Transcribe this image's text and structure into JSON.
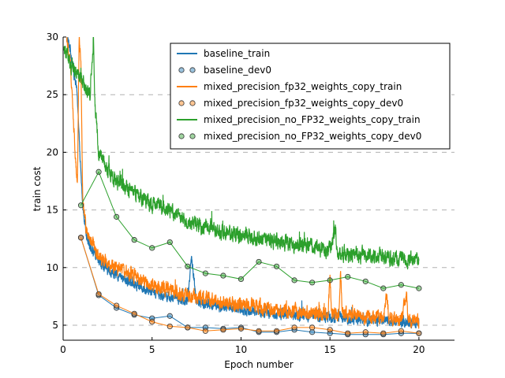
{
  "chart_data": {
    "type": "line",
    "xlabel": "Epoch number",
    "ylabel": "train cost",
    "xlim": [
      0,
      22
    ],
    "ylim": [
      3.7,
      30
    ],
    "xticks": [
      0,
      5,
      10,
      15,
      20
    ],
    "yticks": [
      5,
      10,
      15,
      20,
      25,
      30
    ],
    "grid": "horizontal dashed",
    "legend_position": "top-right",
    "colors": {
      "baseline": "#1f77b4",
      "fp32_copy": "#ff7f0e",
      "no_fp32_copy": "#2ca02c"
    },
    "train_series": [
      {
        "name": "baseline_train",
        "color_key": "baseline",
        "x": [
          0.2,
          0.4,
          0.6,
          0.8,
          0.9,
          1.0,
          1.1,
          1.3,
          1.5,
          1.8,
          2.0,
          2.5,
          3.0,
          3.5,
          4.0,
          4.5,
          5.0,
          5.5,
          6.0,
          6.5,
          7.0,
          7.2,
          7.5,
          8.0,
          9.0,
          10.0,
          11.0,
          12.0,
          13.0,
          14.0,
          15.0,
          16.0,
          17.0,
          18.0,
          18.5,
          19.0,
          20.0
        ],
        "values": [
          30,
          29,
          27,
          25,
          21,
          18,
          15.5,
          13,
          12,
          11,
          10.5,
          9.8,
          9.3,
          8.9,
          8.7,
          8.2,
          8.0,
          7.7,
          7.5,
          7.3,
          7.1,
          11.0,
          7.0,
          6.8,
          6.6,
          6.4,
          6.2,
          6.0,
          5.9,
          5.8,
          5.7,
          5.6,
          5.5,
          5.4,
          5.3,
          5.3,
          5.2
        ],
        "noise": 0.35
      },
      {
        "name": "mixed_precision_fp32_weights_copy_train",
        "color_key": "fp32_copy",
        "x": [
          0.2,
          0.4,
          0.6,
          0.8,
          0.9,
          1.0,
          1.1,
          1.3,
          1.5,
          1.8,
          2.0,
          2.5,
          3.0,
          3.5,
          4.0,
          4.5,
          5.0,
          5.5,
          6.0,
          6.5,
          7.0,
          8.0,
          9.0,
          10.0,
          11.0,
          12.0,
          13.0,
          14.0,
          14.9,
          15.0,
          15.1,
          15.5,
          15.6,
          15.7,
          16.0,
          17.0,
          18.0,
          18.2,
          18.3,
          18.4,
          19.0,
          19.3,
          19.4,
          19.5,
          20.0
        ],
        "values": [
          30,
          28,
          22,
          17,
          30,
          28,
          16,
          13.5,
          12.5,
          11.5,
          11.0,
          10.5,
          10.0,
          9.6,
          9.3,
          8.8,
          8.5,
          8.3,
          8.0,
          7.8,
          7.6,
          7.3,
          7.0,
          6.8,
          6.6,
          6.3,
          6.2,
          6.0,
          6.0,
          9.0,
          6.0,
          6.0,
          9.5,
          6.0,
          5.9,
          5.7,
          5.6,
          7.8,
          5.6,
          5.5,
          5.5,
          7.6,
          5.4,
          5.4,
          5.3
        ],
        "noise": 0.45
      },
      {
        "name": "mixed_precision_no_FP32_weights_copy_train",
        "color_key": "no_fp32_copy",
        "x": [
          0.05,
          0.5,
          0.8,
          1.0,
          1.2,
          1.5,
          1.7,
          1.8,
          2.0,
          2.5,
          3.0,
          3.5,
          4.0,
          5.0,
          6.0,
          7.0,
          8.0,
          9.0,
          10.0,
          11.0,
          12.0,
          13.0,
          14.0,
          15.0,
          15.3,
          15.4,
          15.5,
          16.0,
          17.0,
          18.0,
          19.0,
          20.0
        ],
        "values": [
          29,
          27.5,
          27,
          26.5,
          25.5,
          25,
          30,
          24,
          20,
          18.5,
          17.5,
          17,
          16.5,
          15.5,
          15,
          14,
          13.5,
          13,
          12.8,
          12.5,
          12.3,
          12,
          11.8,
          11.5,
          13.5,
          11.5,
          11.3,
          11.2,
          11.0,
          10.9,
          10.8,
          10.7
        ],
        "noise": 0.5
      }
    ],
    "dev_series": [
      {
        "name": "baseline_dev0",
        "color_key": "baseline",
        "x": [
          1,
          2,
          3,
          4,
          5,
          6,
          7,
          8,
          9,
          10,
          11,
          12,
          13,
          14,
          15,
          16,
          17,
          18,
          19,
          20
        ],
        "values": [
          12.6,
          7.6,
          6.5,
          5.9,
          5.6,
          5.8,
          4.8,
          4.8,
          4.7,
          4.8,
          4.4,
          4.4,
          4.6,
          4.4,
          4.3,
          4.2,
          4.2,
          4.2,
          4.3,
          4.3
        ]
      },
      {
        "name": "mixed_precision_fp32_weights_copy_dev0",
        "color_key": "fp32_copy",
        "x": [
          1,
          2,
          3,
          4,
          5,
          6,
          7,
          8,
          9,
          10,
          11,
          12,
          13,
          14,
          15,
          16,
          17,
          18,
          19,
          20
        ],
        "values": [
          12.6,
          7.7,
          6.7,
          6.0,
          5.3,
          4.9,
          4.8,
          4.5,
          4.6,
          4.7,
          4.5,
          4.5,
          4.8,
          4.8,
          4.6,
          4.3,
          4.4,
          4.3,
          4.5,
          4.3
        ]
      },
      {
        "name": "mixed_precision_no_FP32_weights_copy_dev0",
        "color_key": "no_fp32_copy",
        "x": [
          1,
          2,
          3,
          4,
          5,
          6,
          7,
          8,
          9,
          10,
          11,
          12,
          13,
          14,
          15,
          16,
          17,
          18,
          19,
          20
        ],
        "values": [
          15.4,
          18.3,
          14.4,
          12.4,
          11.7,
          12.2,
          10.1,
          9.5,
          9.3,
          9.0,
          10.5,
          10.1,
          8.9,
          8.7,
          8.9,
          9.2,
          8.8,
          8.2,
          8.5,
          8.2
        ]
      }
    ],
    "legend": [
      {
        "label": "baseline_train",
        "kind": "line",
        "color_key": "baseline"
      },
      {
        "label": "baseline_dev0",
        "kind": "marker",
        "color_key": "baseline"
      },
      {
        "label": "mixed_precision_fp32_weights_copy_train",
        "kind": "line",
        "color_key": "fp32_copy"
      },
      {
        "label": "mixed_precision_fp32_weights_copy_dev0",
        "kind": "marker",
        "color_key": "fp32_copy"
      },
      {
        "label": "mixed_precision_no_FP32_weights_copy_train",
        "kind": "line",
        "color_key": "no_fp32_copy"
      },
      {
        "label": "mixed_precision_no_FP32_weights_copy_dev0",
        "kind": "marker",
        "color_key": "no_fp32_copy"
      }
    ]
  }
}
